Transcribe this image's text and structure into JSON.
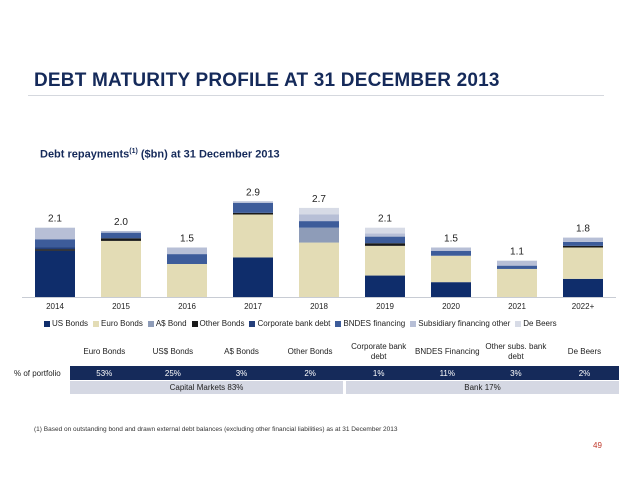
{
  "title": "DEBT MATURITY PROFILE AT 31 DECEMBER 2013",
  "subtitle": {
    "prefix": "Debt repayments",
    "sup": "(1)",
    "suffix": " ($bn) at 31 December 2013"
  },
  "chart_data": {
    "type": "bar",
    "stacked": true,
    "categories": [
      "2014",
      "2015",
      "2016",
      "2017",
      "2018",
      "2019",
      "2020",
      "2021",
      "2022+"
    ],
    "totals": [
      "2.1",
      "2.0",
      "1.5",
      "2.9",
      "2.7",
      "2.1",
      "1.5",
      "1.1",
      "1.8"
    ],
    "ylim": [
      0,
      3.2
    ],
    "series": [
      {
        "name": "US Bonds",
        "color": "#0f2d6b",
        "values": [
          1.4,
          0,
          0,
          1.2,
          0,
          0.65,
          0.45,
          0,
          0.55
        ]
      },
      {
        "name": "Euro Bonds",
        "color": "#e3dcb5",
        "values": [
          0,
          1.7,
          1.0,
          1.3,
          1.65,
          0.9,
          0.8,
          0.85,
          0.95
        ]
      },
      {
        "name": "A$ Bond",
        "color": "#8e9cb8",
        "values": [
          0,
          0,
          0,
          0,
          0.45,
          0,
          0,
          0,
          0
        ]
      },
      {
        "name": "Other Bonds",
        "color": "#1a1a1a",
        "values": [
          0.05,
          0.08,
          0,
          0.05,
          0,
          0.08,
          0,
          0,
          0.05
        ]
      },
      {
        "name": "Corporate bank debt",
        "color": "#243f7a",
        "values": [
          0.05,
          0,
          0,
          0,
          0,
          0,
          0,
          0,
          0
        ]
      },
      {
        "name": "BNDES financing",
        "color": "#3d5c9a",
        "values": [
          0.25,
          0.17,
          0.3,
          0.3,
          0.2,
          0.2,
          0.15,
          0.1,
          0.12
        ]
      },
      {
        "name": "Subsidiary financing other",
        "color": "#b7bfd6",
        "values": [
          0.35,
          0.05,
          0.2,
          0.05,
          0.2,
          0.1,
          0.1,
          0.15,
          0.13
        ]
      },
      {
        "name": "De Beers",
        "color": "#d7dbe6",
        "values": [
          0,
          0,
          0,
          0,
          0.2,
          0.17,
          0,
          0,
          0
        ]
      }
    ]
  },
  "table": {
    "headers": [
      "Euro Bonds",
      "US$ Bonds",
      "A$ Bonds",
      "Other Bonds",
      "Corporate bank debt",
      "BNDES Financing",
      "Other subs. bank debt",
      "De Beers"
    ],
    "row_label": "% of portfolio",
    "values": [
      "53%",
      "25%",
      "3%",
      "2%",
      "1%",
      "11%",
      "3%",
      "2%"
    ],
    "groups": [
      "Capital Markets 83%",
      "Bank 17%"
    ]
  },
  "footnote": "(1)    Based on outstanding bond and drawn external debt balances (excluding other financial liabilities) as at 31 December 2013",
  "page_number": "49"
}
